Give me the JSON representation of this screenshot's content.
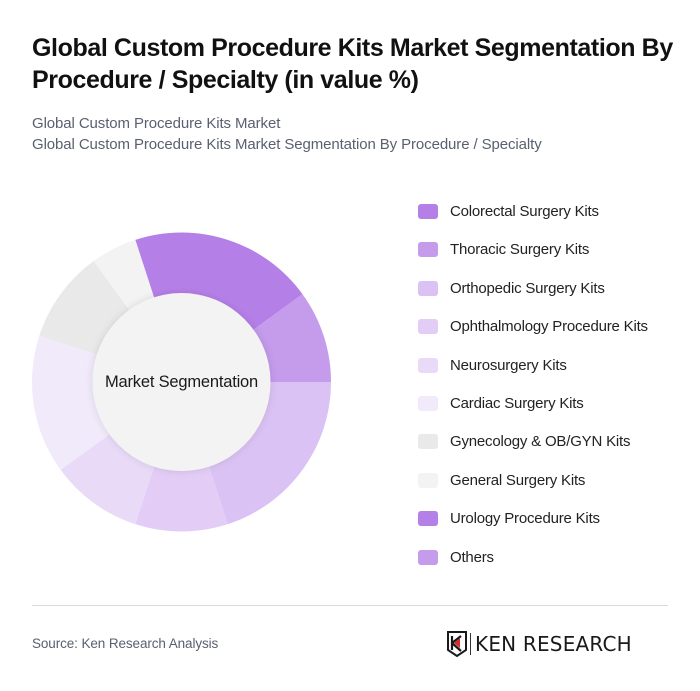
{
  "header": {
    "title": "Global Custom Procedure Kits Market Segmentation By Procedure / Specialty (in value %)",
    "subtitle_line1": "Global Custom Procedure Kits Market",
    "subtitle_line2": "Global Custom Procedure Kits Market Segmentation By Procedure / Specialty"
  },
  "chart_data": {
    "type": "pie",
    "variant": "donut",
    "title": "Global Custom Procedure Kits Market Segmentation By Procedure / Specialty (in value %)",
    "center_label": "Market Segmentation",
    "start_angle_deg": -18,
    "categories": [
      "Colorectal Surgery Kits",
      "Thoracic Surgery Kits",
      "Orthopedic Surgery Kits",
      "Ophthalmology Procedure Kits",
      "Neurosurgery Kits",
      "Cardiac Surgery Kits",
      "Gynecology & OB/GYN Kits",
      "General Surgery Kits",
      "Urology Procedure Kits",
      "Others"
    ],
    "values": [
      20,
      10,
      20,
      10,
      10,
      15,
      10,
      5,
      0,
      0
    ],
    "colors": [
      "#b57fe8",
      "#c59bec",
      "#dbc2f4",
      "#e3cdf6",
      "#e9dbf8",
      "#f1eafb",
      "#e9e9e9",
      "#f3f3f3",
      "#b57fe8",
      "#c59bec"
    ],
    "legend_position": "right",
    "unit": "%"
  },
  "legend": {
    "items": [
      {
        "label": "Colorectal Surgery Kits",
        "color": "#b57fe8"
      },
      {
        "label": "Thoracic Surgery Kits",
        "color": "#c59bec"
      },
      {
        "label": "Orthopedic Surgery Kits",
        "color": "#dbc2f4"
      },
      {
        "label": "Ophthalmology Procedure Kits",
        "color": "#e3cdf6"
      },
      {
        "label": "Neurosurgery Kits",
        "color": "#e9dbf8"
      },
      {
        "label": "Cardiac Surgery Kits",
        "color": "#f1eafb"
      },
      {
        "label": "Gynecology & OB/GYN Kits",
        "color": "#e9e9e9"
      },
      {
        "label": "General Surgery Kits",
        "color": "#f3f3f3"
      },
      {
        "label": "Urology Procedure Kits",
        "color": "#b57fe8"
      },
      {
        "label": "Others",
        "color": "#c59bec"
      }
    ]
  },
  "footer": {
    "source": "Source: Ken Research Analysis",
    "logo_text": "KEN RESEARCH"
  }
}
